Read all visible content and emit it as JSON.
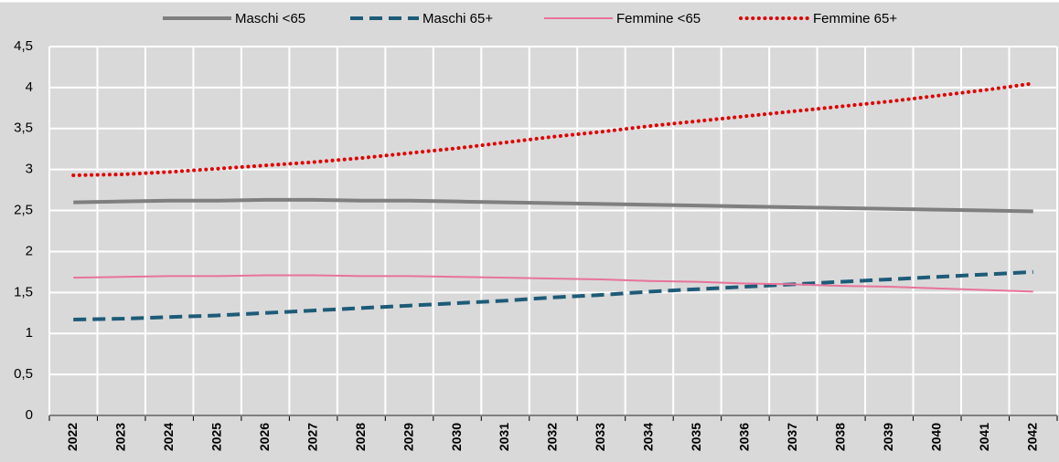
{
  "chart_data": {
    "type": "line",
    "categories": [
      "2022",
      "2023",
      "2024",
      "2025",
      "2026",
      "2027",
      "2028",
      "2029",
      "2030",
      "2031",
      "2032",
      "2033",
      "2034",
      "2035",
      "2036",
      "2037",
      "2038",
      "2039",
      "2040",
      "2041",
      "2042"
    ],
    "series": [
      {
        "name": "Maschi <65",
        "color": "#7f7f7f",
        "style": "solid",
        "values": [
          2.6,
          2.61,
          2.62,
          2.62,
          2.63,
          2.63,
          2.62,
          2.62,
          2.61,
          2.6,
          2.59,
          2.58,
          2.57,
          2.56,
          2.55,
          2.54,
          2.53,
          2.52,
          2.51,
          2.5,
          2.49
        ]
      },
      {
        "name": "Maschi 65+",
        "color": "#1d5b78",
        "style": "dashed",
        "values": [
          1.17,
          1.18,
          1.2,
          1.22,
          1.25,
          1.28,
          1.31,
          1.34,
          1.37,
          1.4,
          1.44,
          1.47,
          1.51,
          1.54,
          1.57,
          1.6,
          1.63,
          1.66,
          1.69,
          1.72,
          1.75
        ]
      },
      {
        "name": "Femmine <65",
        "color": "#e8739b",
        "style": "thin",
        "values": [
          1.68,
          1.69,
          1.7,
          1.7,
          1.71,
          1.71,
          1.7,
          1.7,
          1.69,
          1.68,
          1.67,
          1.66,
          1.64,
          1.63,
          1.61,
          1.6,
          1.58,
          1.57,
          1.55,
          1.53,
          1.51
        ]
      },
      {
        "name": "Femmine 65+",
        "color": "#e00000",
        "style": "dotted",
        "values": [
          2.93,
          2.94,
          2.97,
          3.01,
          3.05,
          3.09,
          3.14,
          3.2,
          3.26,
          3.33,
          3.4,
          3.46,
          3.53,
          3.59,
          3.65,
          3.71,
          3.77,
          3.83,
          3.9,
          3.97,
          4.05
        ]
      }
    ],
    "ylim": [
      0,
      4.5
    ],
    "yticks": [
      0,
      {
        "value": 0.5,
        "label": "0,5"
      },
      1,
      {
        "value": 1.5,
        "label": "1,5"
      },
      2,
      {
        "value": 2.5,
        "label": "2,5"
      },
      3,
      {
        "value": 3.5,
        "label": "3,5"
      },
      4,
      {
        "value": 4.5,
        "label": "4,5"
      }
    ],
    "grid": true,
    "legend": "top"
  }
}
